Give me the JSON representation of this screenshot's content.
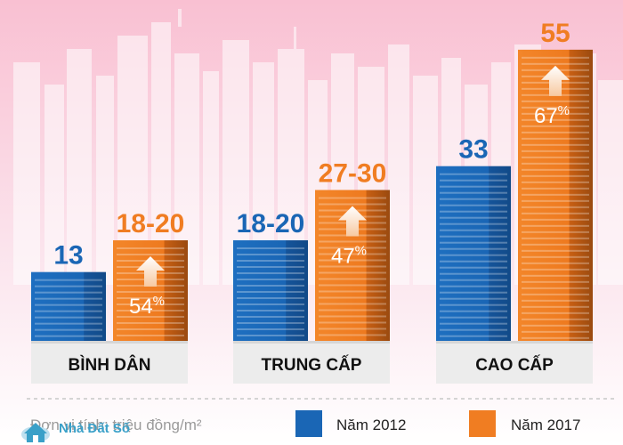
{
  "chart_data": {
    "type": "bar",
    "categories": [
      "BÌNH DÂN",
      "TRUNG CẤP",
      "CAO CẤP"
    ],
    "series": [
      {
        "name": "Năm 2012",
        "values": [
          13,
          19,
          33
        ],
        "labels": [
          "13",
          "18-20",
          "33"
        ]
      },
      {
        "name": "Năm 2017",
        "values": [
          19,
          28.5,
          55
        ],
        "labels": [
          "18-20",
          "27-30",
          "55"
        ]
      }
    ],
    "growth_labels": [
      "54%",
      "47%",
      "67%"
    ],
    "unit": "Đơn vị tính: triệu đồng/m²",
    "legend": [
      {
        "label": "Năm 2012",
        "color": "#1a66b5"
      },
      {
        "label": "Năm 2017",
        "color": "#f07d22"
      }
    ],
    "colors": {
      "series_2012": "#1a66b5",
      "series_2017": "#f07d22",
      "background_top": "#f8c5d5"
    },
    "ylim": [
      0,
      58
    ],
    "grid": false
  },
  "brand": {
    "name": "Nhà Đất Số",
    "icon": "house-cloud-icon"
  }
}
